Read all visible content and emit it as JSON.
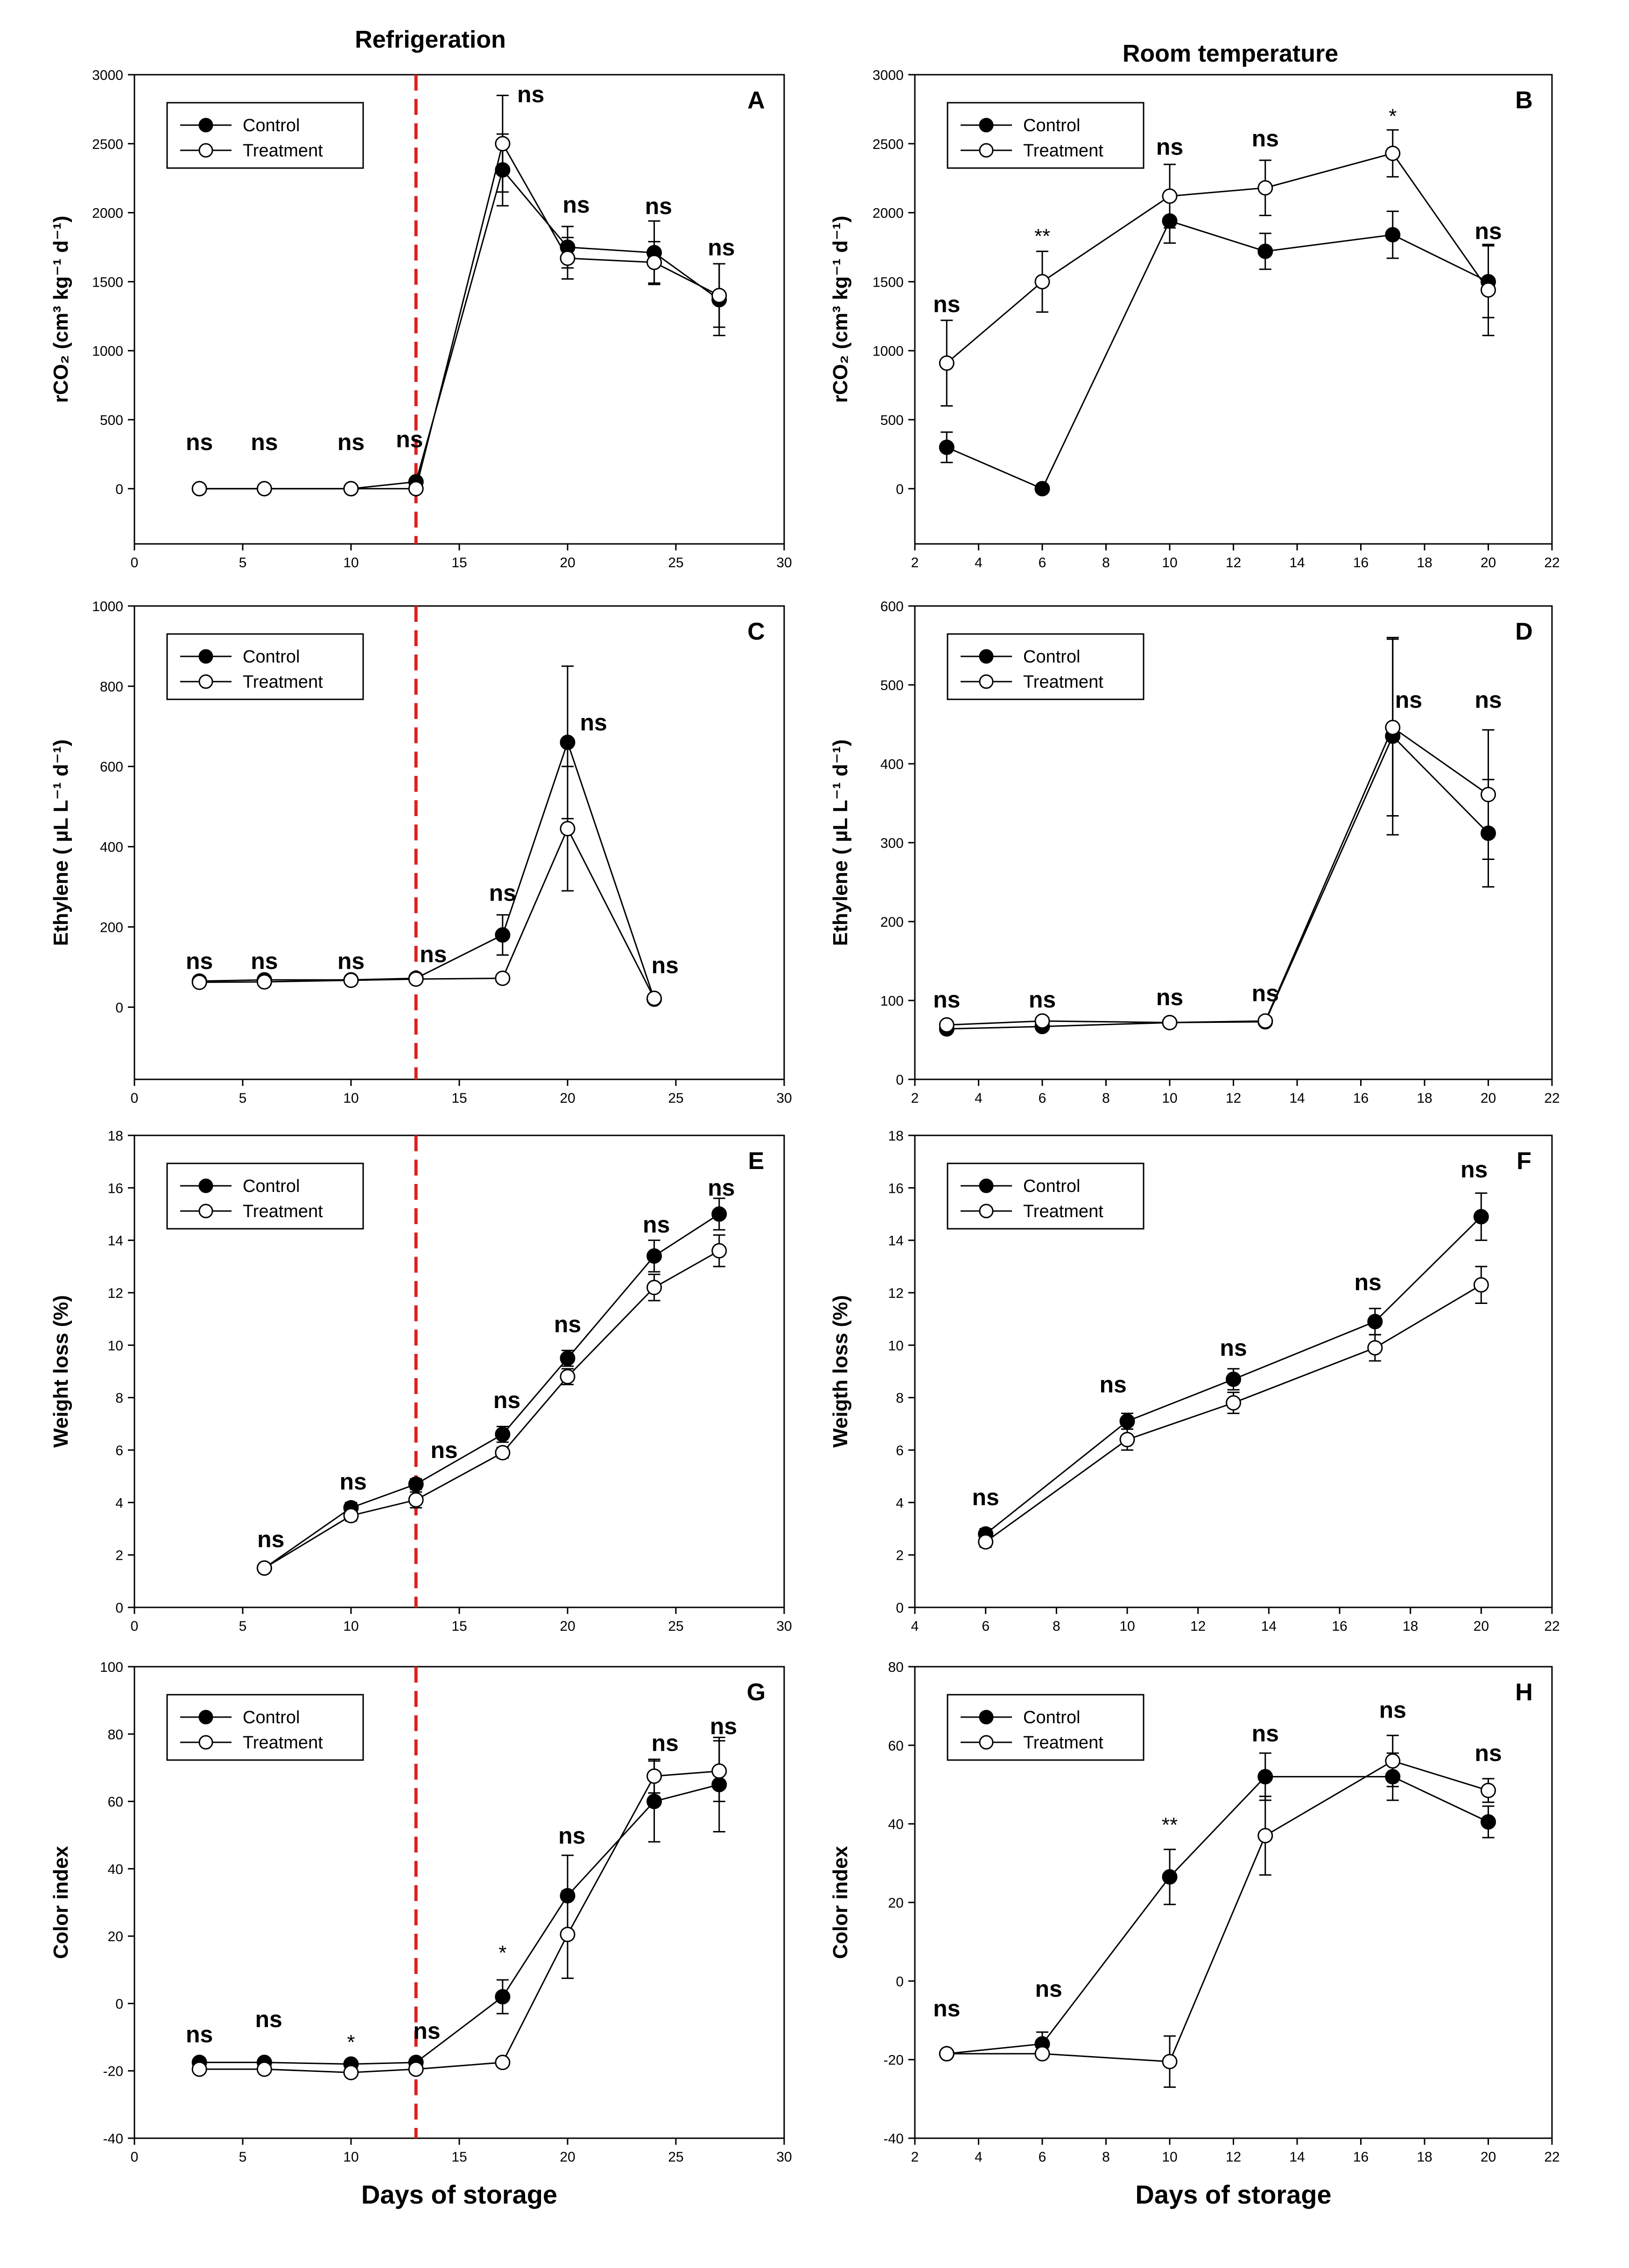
{
  "figure": {
    "column_titles": [
      "Refrigeration",
      "Room temperature"
    ]
  },
  "colors": {
    "control": "#000000",
    "treatment": "#ffffff",
    "cutoff_line": "#dd2020"
  },
  "chart_data": [
    {
      "type": "line",
      "panel": "A",
      "column": 0,
      "row": 0,
      "xlim": [
        0,
        30
      ],
      "ylim": [
        -400,
        3000
      ],
      "xticks": [
        0,
        5,
        10,
        15,
        20,
        25,
        30
      ],
      "yticks": [
        0,
        500,
        1000,
        1500,
        2000,
        2500,
        3000
      ],
      "ylabel": "rCO₂ (cm³ kg⁻¹ d⁻¹)",
      "xlabel": "",
      "cutoff_x": 13,
      "legend": [
        "Control",
        "Treatment"
      ],
      "series": [
        {
          "name": "Control",
          "x": [
            3,
            6,
            10,
            13,
            17,
            20,
            24,
            27
          ],
          "values": [
            0,
            0,
            0,
            50,
            2310,
            1750,
            1710,
            1370
          ],
          "err": [
            0,
            0,
            0,
            0,
            260,
            150,
            230,
            260
          ]
        },
        {
          "name": "Treatment",
          "x": [
            3,
            6,
            10,
            13,
            17,
            20,
            24,
            27
          ],
          "values": [
            0,
            0,
            0,
            0,
            2500,
            1670,
            1640,
            1400
          ],
          "err": [
            0,
            0,
            0,
            0,
            350,
            150,
            150,
            230
          ]
        }
      ],
      "annotations": [
        {
          "x": 3,
          "y": 280,
          "text": "ns"
        },
        {
          "x": 6,
          "y": 280,
          "text": "ns"
        },
        {
          "x": 10,
          "y": 280,
          "text": "ns"
        },
        {
          "x": 12.7,
          "y": 300,
          "text": "ns"
        },
        {
          "x": 18.3,
          "y": 2800,
          "text": "ns"
        },
        {
          "x": 20.4,
          "y": 2000,
          "text": "ns"
        },
        {
          "x": 24.2,
          "y": 1990,
          "text": "ns"
        },
        {
          "x": 27.1,
          "y": 1690,
          "text": "ns"
        }
      ]
    },
    {
      "type": "line",
      "panel": "B",
      "column": 1,
      "row": 0,
      "xlim": [
        2,
        22
      ],
      "ylim": [
        -400,
        3000
      ],
      "xticks": [
        2,
        4,
        6,
        8,
        10,
        12,
        14,
        16,
        18,
        20,
        22
      ],
      "yticks": [
        0,
        500,
        1000,
        1500,
        2000,
        2500,
        3000
      ],
      "ylabel": "rCO₂ (cm³ kg⁻¹ d⁻¹)",
      "xlabel": "",
      "legend": [
        "Control",
        "Treatment"
      ],
      "series": [
        {
          "name": "Control",
          "x": [
            3,
            6,
            10,
            13,
            17,
            20
          ],
          "values": [
            300,
            0,
            1940,
            1720,
            1840,
            1500
          ],
          "err": [
            110,
            0,
            160,
            130,
            170,
            260
          ]
        },
        {
          "name": "Treatment",
          "x": [
            3,
            6,
            10,
            13,
            17,
            20
          ],
          "values": [
            910,
            1500,
            2120,
            2180,
            2430,
            1440
          ],
          "err": [
            310,
            220,
            230,
            200,
            170,
            330
          ]
        }
      ],
      "annotations": [
        {
          "x": 3,
          "y": 1280,
          "text": "ns"
        },
        {
          "x": 6,
          "y": 1780,
          "text": "**"
        },
        {
          "x": 10,
          "y": 2420,
          "text": "ns"
        },
        {
          "x": 13,
          "y": 2480,
          "text": "ns"
        },
        {
          "x": 17,
          "y": 2650,
          "text": "*"
        },
        {
          "x": 20,
          "y": 1810,
          "text": "ns"
        }
      ]
    },
    {
      "type": "line",
      "panel": "C",
      "column": 0,
      "row": 1,
      "xlim": [
        0,
        30
      ],
      "ylim": [
        -180,
        1000
      ],
      "xticks": [
        0,
        5,
        10,
        15,
        20,
        25,
        30
      ],
      "yticks": [
        0,
        200,
        400,
        600,
        800,
        1000
      ],
      "ylabel": "Ethylene ( µL L⁻¹ d⁻¹)",
      "xlabel": "",
      "cutoff_x": 13,
      "legend": [
        "Control",
        "Treatment"
      ],
      "series": [
        {
          "name": "Control",
          "x": [
            3,
            6,
            10,
            13,
            17,
            20,
            24
          ],
          "values": [
            65,
            68,
            68,
            72,
            180,
            660,
            20
          ],
          "err": [
            0,
            0,
            0,
            0,
            50,
            190,
            0
          ]
        },
        {
          "name": "Treatment",
          "x": [
            3,
            6,
            10,
            13,
            17,
            20,
            24
          ],
          "values": [
            62,
            63,
            67,
            70,
            72,
            445,
            22
          ],
          "err": [
            0,
            0,
            0,
            0,
            0,
            155,
            0
          ]
        }
      ],
      "annotations": [
        {
          "x": 3,
          "y": 95,
          "text": "ns"
        },
        {
          "x": 6,
          "y": 95,
          "text": "ns"
        },
        {
          "x": 10,
          "y": 95,
          "text": "ns"
        },
        {
          "x": 13.8,
          "y": 112,
          "text": "ns"
        },
        {
          "x": 17,
          "y": 265,
          "text": "ns"
        },
        {
          "x": 21.2,
          "y": 690,
          "text": "ns"
        },
        {
          "x": 24.5,
          "y": 85,
          "text": "ns"
        }
      ]
    },
    {
      "type": "line",
      "panel": "D",
      "column": 1,
      "row": 1,
      "xlim": [
        2,
        22
      ],
      "ylim": [
        0,
        600
      ],
      "xticks": [
        2,
        4,
        6,
        8,
        10,
        12,
        14,
        16,
        18,
        20,
        22
      ],
      "yticks": [
        0,
        100,
        200,
        300,
        400,
        500,
        600
      ],
      "ylabel": "Ethylene ( µL L⁻¹ d⁻¹)",
      "xlabel": "",
      "legend": [
        "Control",
        "Treatment"
      ],
      "series": [
        {
          "name": "Control",
          "x": [
            3,
            6,
            10,
            13,
            17,
            20
          ],
          "values": [
            64,
            67,
            72,
            73,
            435,
            312
          ],
          "err": [
            0,
            0,
            0,
            0,
            125,
            68
          ]
        },
        {
          "name": "Treatment",
          "x": [
            3,
            6,
            10,
            13,
            17,
            20
          ],
          "values": [
            69,
            74,
            72,
            74,
            446,
            361
          ],
          "err": [
            0,
            0,
            0,
            0,
            112,
            82
          ]
        }
      ],
      "annotations": [
        {
          "x": 3,
          "y": 91,
          "text": "ns"
        },
        {
          "x": 6,
          "y": 91,
          "text": "ns"
        },
        {
          "x": 10,
          "y": 94,
          "text": "ns"
        },
        {
          "x": 13,
          "y": 99,
          "text": "ns"
        },
        {
          "x": 17.5,
          "y": 471,
          "text": "ns"
        },
        {
          "x": 20,
          "y": 471,
          "text": "ns"
        }
      ]
    },
    {
      "type": "line",
      "panel": "E",
      "column": 0,
      "row": 2,
      "xlim": [
        0,
        30
      ],
      "ylim": [
        0,
        18
      ],
      "xticks": [
        0,
        5,
        10,
        15,
        20,
        25,
        30
      ],
      "yticks": [
        0,
        2,
        4,
        6,
        8,
        10,
        12,
        14,
        16,
        18
      ],
      "ylabel": "Weight loss (%)",
      "xlabel": "",
      "cutoff_x": 13,
      "legend": [
        "Control",
        "Treatment"
      ],
      "series": [
        {
          "name": "Control",
          "x": [
            6,
            10,
            13,
            17,
            20,
            24,
            27
          ],
          "values": [
            1.5,
            3.8,
            4.7,
            6.6,
            9.5,
            13.4,
            15.0
          ],
          "err": [
            0.1,
            0.2,
            0.2,
            0.3,
            0.3,
            0.6,
            0.6
          ]
        },
        {
          "name": "Treatment",
          "x": [
            6,
            10,
            13,
            17,
            20,
            24,
            27
          ],
          "values": [
            1.5,
            3.5,
            4.1,
            5.9,
            8.8,
            12.2,
            13.6
          ],
          "err": [
            0.1,
            0.2,
            0.3,
            0.2,
            0.3,
            0.5,
            0.6
          ]
        }
      ],
      "annotations": [
        {
          "x": 6.3,
          "y": 2.3,
          "text": "ns"
        },
        {
          "x": 10.1,
          "y": 4.5,
          "text": "ns"
        },
        {
          "x": 14.3,
          "y": 5.7,
          "text": "ns"
        },
        {
          "x": 17.2,
          "y": 7.6,
          "text": "ns"
        },
        {
          "x": 20,
          "y": 10.5,
          "text": "ns"
        },
        {
          "x": 24.1,
          "y": 14.3,
          "text": "ns"
        },
        {
          "x": 27.1,
          "y": 15.7,
          "text": "ns"
        }
      ]
    },
    {
      "type": "line",
      "panel": "F",
      "column": 1,
      "row": 2,
      "xlim": [
        4,
        22
      ],
      "ylim": [
        0,
        18
      ],
      "xticks": [
        4,
        6,
        8,
        10,
        12,
        14,
        16,
        18,
        20,
        22
      ],
      "yticks": [
        0,
        2,
        4,
        6,
        8,
        10,
        12,
        14,
        16,
        18
      ],
      "ylabel": "Weigth loss (%)",
      "xlabel": "",
      "legend": [
        "Control",
        "Treatment"
      ],
      "series": [
        {
          "name": "Control",
          "x": [
            6,
            10,
            13,
            17,
            20
          ],
          "values": [
            2.8,
            7.1,
            8.7,
            10.9,
            14.9
          ],
          "err": [
            0.2,
            0.3,
            0.4,
            0.5,
            0.9
          ]
        },
        {
          "name": "Treatment",
          "x": [
            6,
            10,
            13,
            17,
            20
          ],
          "values": [
            2.5,
            6.4,
            7.8,
            9.9,
            12.3
          ],
          "err": [
            0.2,
            0.4,
            0.4,
            0.5,
            0.7
          ]
        }
      ],
      "annotations": [
        {
          "x": 6,
          "y": 3.9,
          "text": "ns"
        },
        {
          "x": 9.6,
          "y": 8.2,
          "text": "ns"
        },
        {
          "x": 13,
          "y": 9.6,
          "text": "ns"
        },
        {
          "x": 16.8,
          "y": 12.1,
          "text": "ns"
        },
        {
          "x": 19.8,
          "y": 16.4,
          "text": "ns"
        }
      ]
    },
    {
      "type": "line",
      "panel": "G",
      "column": 0,
      "row": 3,
      "xlim": [
        0,
        30
      ],
      "ylim": [
        -40,
        100
      ],
      "xticks": [
        0,
        5,
        10,
        15,
        20,
        25,
        30
      ],
      "yticks": [
        -40,
        -20,
        0,
        20,
        40,
        60,
        80,
        100
      ],
      "ylabel": "Color index",
      "xlabel": "Days of storage",
      "cutoff_x": 13,
      "legend": [
        "Control",
        "Treatment"
      ],
      "series": [
        {
          "name": "Control",
          "x": [
            3,
            6,
            10,
            13,
            17,
            20,
            24,
            27
          ],
          "values": [
            -17.5,
            -17.5,
            -18,
            -17.5,
            2,
            32,
            60,
            65
          ],
          "err": [
            0.5,
            0.5,
            0.5,
            0.5,
            5,
            12,
            12,
            14
          ]
        },
        {
          "name": "Treatment",
          "x": [
            3,
            6,
            10,
            13,
            17,
            20,
            24,
            27
          ],
          "values": [
            -19.5,
            -19.5,
            -20.5,
            -19.5,
            -17.5,
            20.5,
            67.5,
            69
          ],
          "err": [
            0.5,
            0.5,
            0.5,
            0.5,
            0.5,
            13,
            5,
            9
          ]
        }
      ],
      "annotations": [
        {
          "x": 3,
          "y": -11.5,
          "text": "ns"
        },
        {
          "x": 6.2,
          "y": -7,
          "text": "ns"
        },
        {
          "x": 10,
          "y": -13.5,
          "text": "*"
        },
        {
          "x": 13.5,
          "y": -10.5,
          "text": "ns"
        },
        {
          "x": 17,
          "y": 13,
          "text": "*"
        },
        {
          "x": 20.2,
          "y": 47.5,
          "text": "ns"
        },
        {
          "x": 24.5,
          "y": 75,
          "text": "ns"
        },
        {
          "x": 27.2,
          "y": 80,
          "text": "ns"
        }
      ]
    },
    {
      "type": "line",
      "panel": "H",
      "column": 1,
      "row": 3,
      "xlim": [
        2,
        22
      ],
      "ylim": [
        -40,
        80
      ],
      "xticks": [
        2,
        4,
        6,
        8,
        10,
        12,
        14,
        16,
        18,
        20,
        22
      ],
      "yticks": [
        -40,
        -20,
        0,
        20,
        40,
        60,
        80
      ],
      "ylabel": "Color index",
      "xlabel": "Days of storage",
      "legend": [
        "Control",
        "Treatment"
      ],
      "series": [
        {
          "name": "Control",
          "x": [
            3,
            6,
            10,
            13,
            17,
            20
          ],
          "values": [
            -18.5,
            -16,
            26.5,
            52,
            52,
            40.5
          ],
          "err": [
            0.5,
            3,
            7,
            6,
            6,
            4
          ]
        },
        {
          "name": "Treatment",
          "x": [
            3,
            6,
            10,
            13,
            17,
            20
          ],
          "values": [
            -18.5,
            -18.5,
            -20.5,
            37,
            56,
            48.5
          ],
          "err": [
            0.5,
            0.5,
            6.5,
            10,
            6.5,
            3
          ]
        }
      ],
      "annotations": [
        {
          "x": 3,
          "y": -9,
          "text": "ns"
        },
        {
          "x": 6.2,
          "y": -4,
          "text": "ns"
        },
        {
          "x": 10,
          "y": 38,
          "text": "**"
        },
        {
          "x": 13,
          "y": 61,
          "text": "ns"
        },
        {
          "x": 17,
          "y": 67,
          "text": "ns"
        },
        {
          "x": 20,
          "y": 56,
          "text": "ns"
        }
      ]
    }
  ]
}
